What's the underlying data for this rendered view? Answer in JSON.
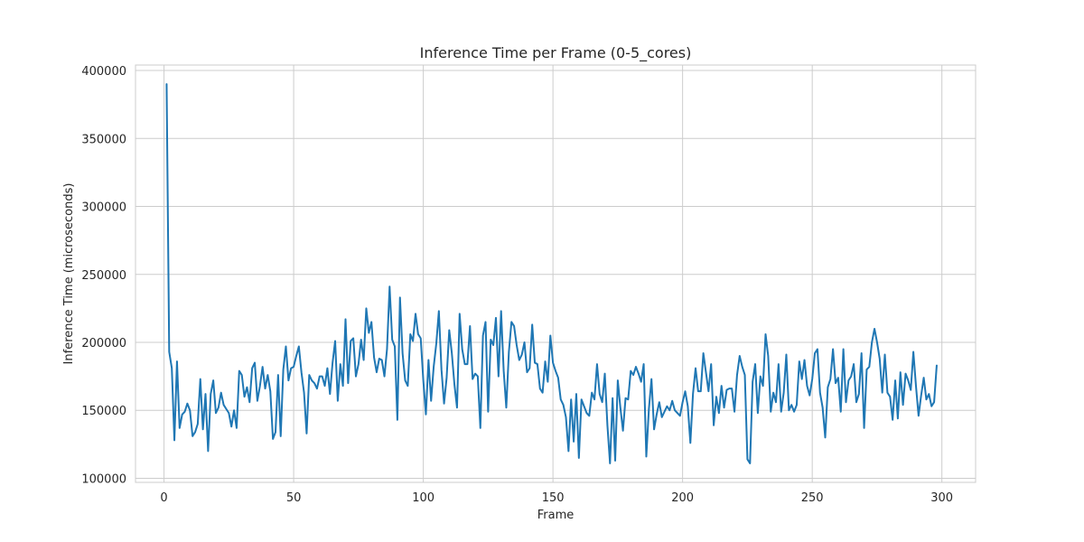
{
  "chart_data": {
    "type": "line",
    "title": "Inference Time per Frame (0-5_cores)",
    "xlabel": "Frame",
    "ylabel": "Inference Time (microseconds)",
    "xlim": [
      -11,
      313
    ],
    "ylim": [
      97000,
      404000
    ],
    "xticks": [
      0,
      50,
      100,
      150,
      200,
      250,
      300
    ],
    "yticks": [
      100000,
      150000,
      200000,
      250000,
      300000,
      350000,
      400000
    ],
    "grid": true,
    "series": [
      {
        "color": "#1f77b4",
        "x_start": 1,
        "x_step": 1,
        "values": [
          390000,
          193000,
          181000,
          128000,
          186000,
          137000,
          147000,
          149000,
          155000,
          150000,
          131000,
          134000,
          140000,
          173000,
          136000,
          162000,
          120000,
          162000,
          172000,
          148000,
          152000,
          163000,
          154000,
          151000,
          148000,
          138000,
          150000,
          137000,
          179000,
          176000,
          160000,
          167000,
          156000,
          181000,
          185000,
          157000,
          168000,
          182000,
          166000,
          176000,
          164000,
          129000,
          134000,
          176000,
          131000,
          180000,
          197000,
          172000,
          181000,
          182000,
          190000,
          197000,
          178000,
          163000,
          133000,
          176000,
          172000,
          170000,
          166000,
          175000,
          175000,
          168000,
          181000,
          162000,
          185000,
          201000,
          157000,
          184000,
          168000,
          217000,
          170000,
          201000,
          203000,
          175000,
          184000,
          202000,
          187000,
          225000,
          207000,
          215000,
          189000,
          178000,
          188000,
          187000,
          175000,
          195000,
          241000,
          202000,
          197000,
          143000,
          233000,
          192000,
          172000,
          168000,
          206000,
          201000,
          221000,
          206000,
          203000,
          172000,
          147000,
          187000,
          157000,
          182000,
          199000,
          223000,
          180000,
          155000,
          174000,
          209000,
          192000,
          169000,
          152000,
          221000,
          195000,
          184000,
          184000,
          212000,
          173000,
          177000,
          175000,
          137000,
          205000,
          215000,
          149000,
          202000,
          198000,
          218000,
          175000,
          223000,
          179000,
          152000,
          193000,
          215000,
          212000,
          198000,
          187000,
          191000,
          200000,
          178000,
          181000,
          213000,
          185000,
          184000,
          166000,
          163000,
          186000,
          171000,
          205000,
          185000,
          179000,
          174000,
          158000,
          154000,
          145000,
          120000,
          158000,
          127000,
          162000,
          115000,
          158000,
          153000,
          148000,
          146000,
          163000,
          158000,
          184000,
          162000,
          156000,
          177000,
          139000,
          111000,
          159000,
          113000,
          172000,
          152000,
          135000,
          159000,
          158000,
          179000,
          176000,
          182000,
          177000,
          171000,
          184000,
          116000,
          151000,
          173000,
          136000,
          147000,
          156000,
          145000,
          149000,
          153000,
          150000,
          157000,
          150000,
          148000,
          146000,
          156000,
          164000,
          153000,
          126000,
          162000,
          181000,
          164000,
          164000,
          192000,
          178000,
          164000,
          184000,
          139000,
          160000,
          148000,
          168000,
          152000,
          165000,
          166000,
          166000,
          149000,
          176000,
          190000,
          182000,
          176000,
          114000,
          111000,
          171000,
          184000,
          148000,
          175000,
          168000,
          206000,
          190000,
          149000,
          163000,
          156000,
          184000,
          149000,
          163000,
          191000,
          150000,
          154000,
          149000,
          154000,
          186000,
          173000,
          187000,
          168000,
          161000,
          173000,
          192000,
          195000,
          163000,
          152000,
          130000,
          167000,
          173000,
          195000,
          170000,
          174000,
          149000,
          195000,
          156000,
          172000,
          175000,
          184000,
          156000,
          162000,
          192000,
          137000,
          180000,
          182000,
          200000,
          210000,
          200000,
          188000,
          163000,
          191000,
          163000,
          160000,
          143000,
          172000,
          144000,
          178000,
          154000,
          177000,
          172000,
          165000,
          193000,
          168000,
          146000,
          161000,
          174000,
          158000,
          162000,
          153000,
          156000,
          183000
        ]
      }
    ]
  }
}
